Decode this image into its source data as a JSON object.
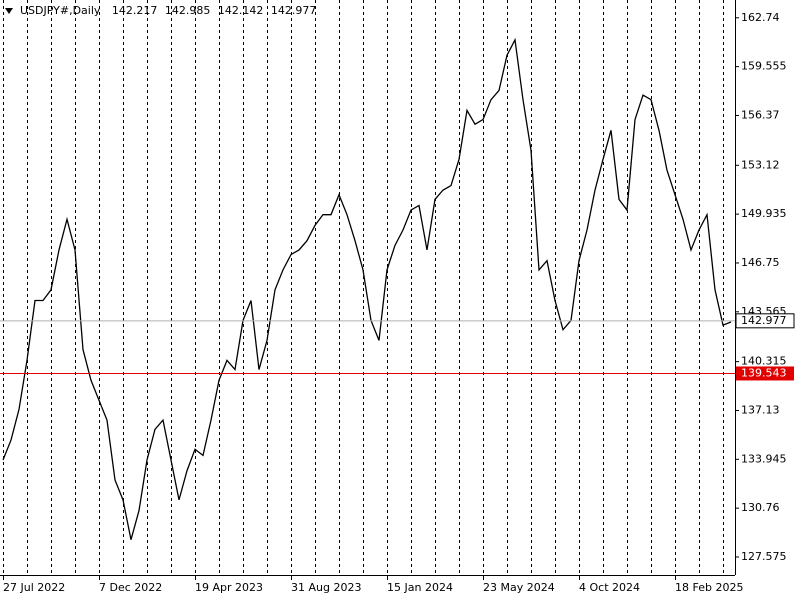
{
  "chart_data": {
    "type": "line",
    "symbol": "USDJPY#,Daily",
    "open": 142.217,
    "high": 142.985,
    "low": 142.142,
    "close": 142.977,
    "level": 139.543,
    "level_color": "#e00000",
    "color": "#000000",
    "grid": "vertical",
    "ylim": [
      126.4,
      163.9
    ],
    "yticks": [
      127.575,
      130.76,
      133.945,
      137.13,
      140.315,
      143.565,
      146.75,
      149.935,
      153.12,
      156.37,
      159.555,
      162.74
    ],
    "categories": [
      "27 Jul 2022",
      null,
      null,
      null,
      null,
      null,
      null,
      null,
      null,
      null,
      null,
      null,
      "7 Dec 2022",
      null,
      null,
      null,
      null,
      null,
      null,
      null,
      null,
      null,
      null,
      null,
      "19 Apr 2023",
      null,
      null,
      null,
      null,
      null,
      null,
      null,
      null,
      null,
      null,
      null,
      "31 Aug 2023",
      null,
      null,
      null,
      null,
      null,
      null,
      null,
      null,
      null,
      null,
      null,
      "15 Jan 2024",
      null,
      null,
      null,
      null,
      null,
      null,
      null,
      null,
      null,
      null,
      null,
      "23 May 2024",
      null,
      null,
      null,
      null,
      null,
      null,
      null,
      null,
      null,
      null,
      null,
      "4 Oct 2024",
      null,
      null,
      null,
      null,
      null,
      null,
      null,
      null,
      null,
      null,
      null,
      "18 Feb 2025",
      null,
      null,
      null,
      null,
      null,
      null,
      null
    ],
    "values": [
      133.9,
      135.2,
      137.2,
      140.4,
      144.3,
      144.3,
      145.0,
      147.6,
      149.6,
      147.6,
      141.1,
      139.1,
      137.8,
      136.5,
      132.6,
      131.3,
      128.7,
      130.6,
      133.9,
      135.9,
      136.5,
      133.9,
      131.3,
      133.2,
      134.6,
      134.2,
      136.5,
      139.1,
      140.4,
      139.8,
      143.0,
      144.3,
      139.8,
      141.7,
      145.0,
      146.3,
      147.3,
      147.6,
      148.2,
      149.2,
      149.9,
      149.9,
      151.2,
      149.9,
      148.2,
      146.3,
      143.0,
      141.7,
      146.3,
      147.9,
      148.9,
      150.2,
      150.5,
      147.6,
      150.9,
      151.5,
      151.8,
      153.5,
      156.7,
      155.8,
      156.1,
      157.4,
      158.0,
      160.3,
      161.3,
      157.4,
      154.1,
      146.3,
      146.9,
      144.3,
      142.4,
      143.0,
      146.9,
      148.9,
      151.5,
      153.5,
      155.4,
      150.9,
      150.2,
      156.1,
      157.7,
      157.4,
      155.4,
      152.8,
      151.2,
      149.6,
      147.6,
      148.9,
      149.9,
      145.0,
      142.7,
      142.9
    ]
  }
}
